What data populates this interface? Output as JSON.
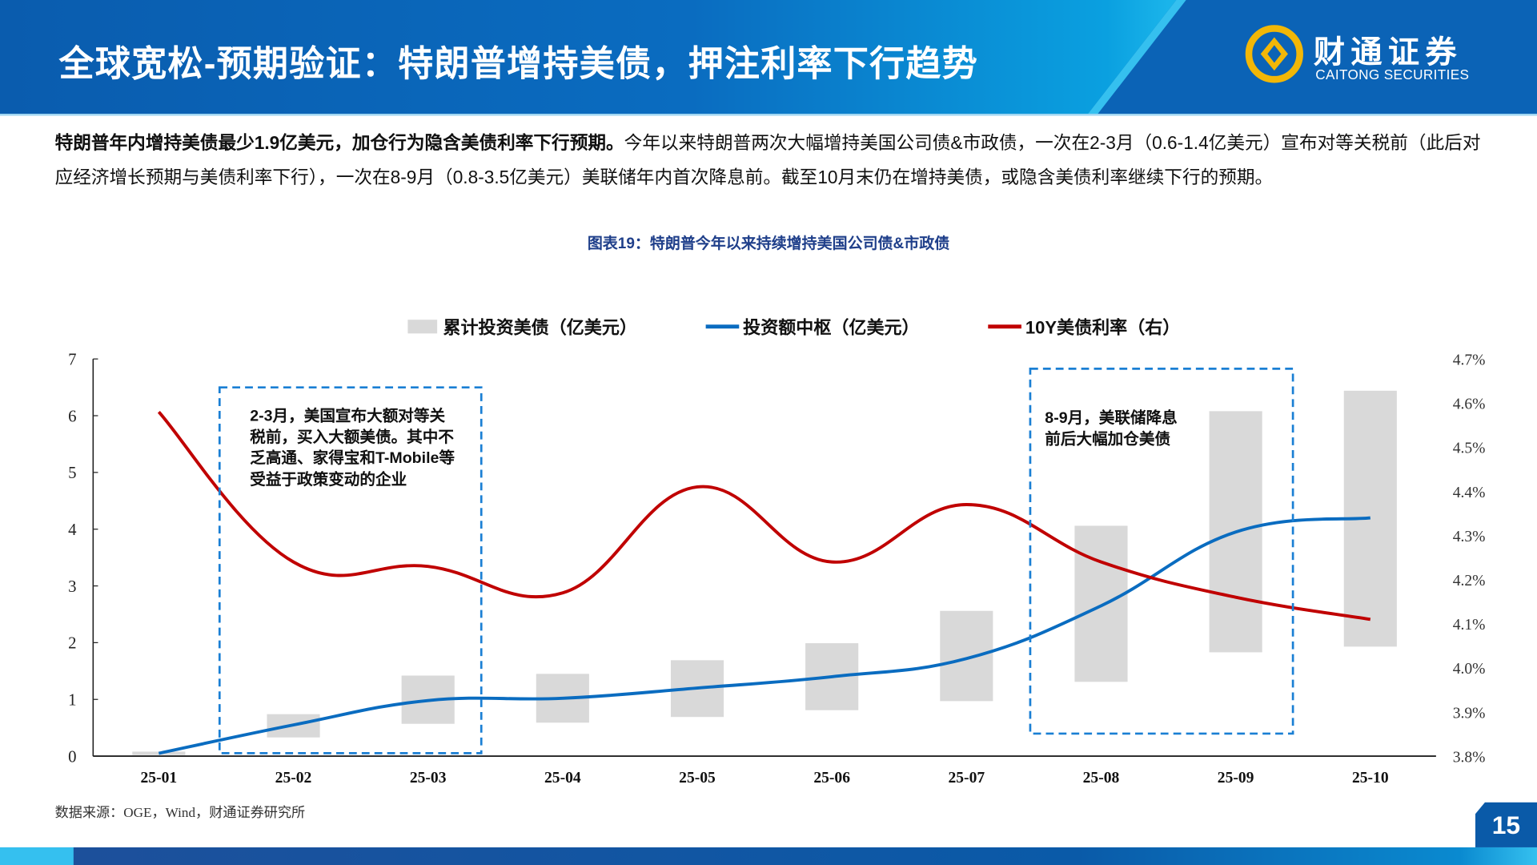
{
  "header": {
    "title": "全球宽松-预期验证：特朗普增持美债，押注利率下行趋势",
    "logo_cn": "财通证券",
    "logo_en": "CAITONG SECURITIES"
  },
  "paragraph": {
    "bold": "特朗普年内增持美债最少1.9亿美元，加仓行为隐含美债利率下行预期。",
    "normal": "今年以来特朗普两次大幅增持美国公司债&市政债，一次在2-3月（0.6-1.4亿美元）宣布对等关税前（此后对应经济增长预期与美债利率下行），一次在8-9月（0.8-3.5亿美元）美联储年内首次降息前。截至10月末仍在增持美债，或隐含美债利率继续下行的预期。"
  },
  "chart_data": {
    "type": "bar+line",
    "title": "图表19：特朗普今年以来持续增持美国公司债&市政债",
    "categories": [
      "25-01",
      "25-02",
      "25-03",
      "25-04",
      "25-05",
      "25-06",
      "25-07",
      "25-08",
      "25-09",
      "25-10"
    ],
    "legend_position": "top",
    "grid": false,
    "y_left": {
      "range": [
        0,
        7
      ],
      "ticks": [
        "0",
        "1",
        "2",
        "3",
        "4",
        "5",
        "6",
        "7"
      ]
    },
    "y_right": {
      "range": [
        3.8,
        4.7
      ],
      "ticks": [
        "3.8%",
        "3.9%",
        "4.0%",
        "4.1%",
        "4.2%",
        "4.3%",
        "4.4%",
        "4.5%",
        "4.6%",
        "4.7%"
      ]
    },
    "series": [
      {
        "name": "累计投资美债（亿美元）",
        "type": "floating-bar",
        "axis": "left",
        "color": "#d9d9d9",
        "low": [
          0.02,
          0.33,
          0.57,
          0.59,
          0.69,
          0.81,
          0.97,
          1.31,
          1.83,
          1.93
        ],
        "high": [
          0.08,
          0.74,
          1.42,
          1.45,
          1.69,
          1.99,
          2.56,
          4.06,
          6.08,
          6.44
        ]
      },
      {
        "name": "投资额中枢（亿美元）",
        "type": "line",
        "axis": "left",
        "color": "#0a6cc0",
        "values": [
          0.05,
          0.55,
          0.98,
          1.02,
          1.2,
          1.4,
          1.72,
          2.65,
          3.95,
          4.2
        ]
      },
      {
        "name": "10Y美债利率（右）",
        "type": "line",
        "axis": "right",
        "color": "#c00000",
        "values": [
          4.58,
          4.24,
          4.23,
          4.17,
          4.41,
          4.24,
          4.37,
          4.24,
          4.16,
          4.11
        ]
      }
    ],
    "annotations": [
      {
        "text": "2-3月，美国宣布大额对等关税前，买入大额美债。其中不乏高通、家得宝和T-Mobile等受益于政策变动的企业",
        "lines": [
          "2-3月，美国宣布大额对等",
          "关税前，买入大额美债。",
          "其中不乏高通、家得宝和",
          "T-Mobile等受益于政策变",
          "动的企业"
        ],
        "span": [
          "25-02",
          "25-03"
        ]
      },
      {
        "text": "8-9月，美联储降息前后大幅加仓美债",
        "lines": [
          "8-9月，美联储降息",
          "前后大幅加仓美债"
        ],
        "span": [
          "25-08",
          "25-09"
        ]
      }
    ],
    "box_color": "#1a7fd4"
  },
  "footer": {
    "source": "数据来源：OGE，Wind，财通证券研究所",
    "page": "15"
  }
}
